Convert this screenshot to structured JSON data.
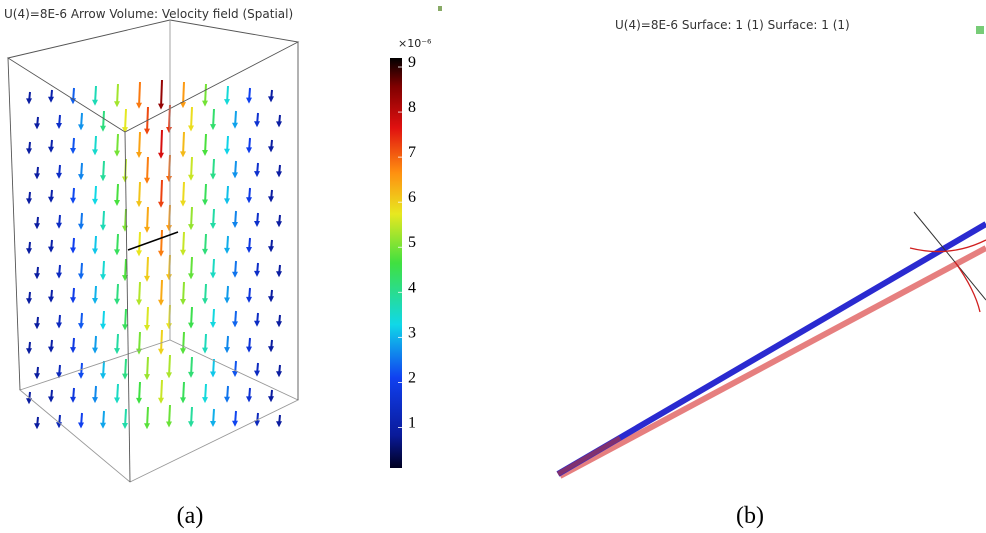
{
  "panels": [
    {
      "title": "U(4)=8E-6   Arrow Volume: Velocity field (Spatial)",
      "colorbar": {
        "multiplier": "×10⁻⁶",
        "lim": [
          0.1,
          9.2
        ],
        "ticks": [
          1,
          2,
          3,
          4,
          5,
          6,
          7,
          8,
          9
        ]
      },
      "caption": "(a)"
    },
    {
      "title": "U(4)=8E-6   Surface: 1 (1)  Surface: 1 (1)",
      "caption": "(b)"
    }
  ]
}
